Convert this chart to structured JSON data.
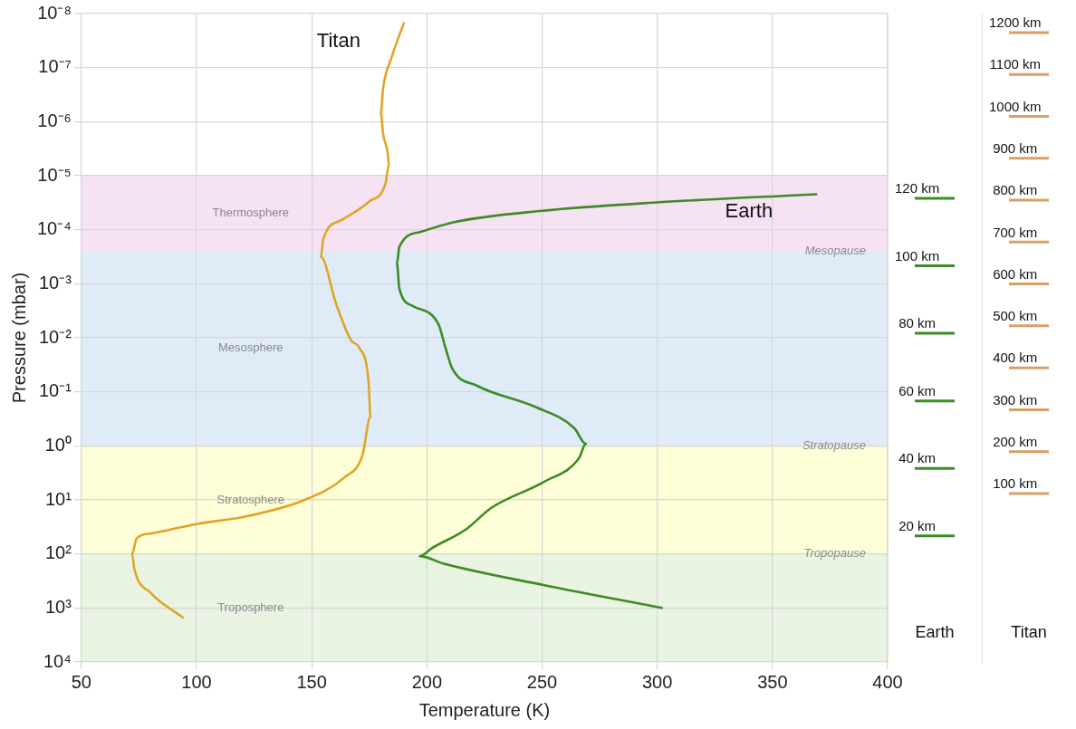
{
  "chart_data": {
    "type": "line",
    "xlabel": "Temperature (K)",
    "ylabel": "Pressure (mbar)",
    "y2label": "Earth",
    "y3label": "Titan",
    "xlim": [
      50,
      400
    ],
    "xticks": [
      50,
      100,
      150,
      200,
      250,
      300,
      350,
      400
    ],
    "ylim": [
      10000,
      1e-08
    ],
    "yticks": [
      {
        "value": 1e-08,
        "label": "10⁻⁸"
      },
      {
        "value": 1e-07,
        "label": "10⁻⁷"
      },
      {
        "value": 1e-06,
        "label": "10⁻⁶"
      },
      {
        "value": 1e-05,
        "label": "10⁻⁵"
      },
      {
        "value": 0.0001,
        "label": "10⁻⁴"
      },
      {
        "value": 0.001,
        "label": "10⁻³"
      },
      {
        "value": 0.01,
        "label": "10⁻²"
      },
      {
        "value": 0.1,
        "label": "10⁻¹"
      },
      {
        "value": 1,
        "label": "10⁰"
      },
      {
        "value": 10,
        "label": "10¹"
      },
      {
        "value": 100,
        "label": "10²"
      },
      {
        "value": 1000,
        "label": "10³"
      },
      {
        "value": 10000,
        "label": "10⁴"
      }
    ],
    "y2lim": [
      -20,
      172
    ],
    "y2ticks": [
      {
        "value": 120,
        "label": "120 km"
      },
      {
        "value": 100,
        "label": "100 km"
      },
      {
        "value": 80,
        "label": "80 km"
      },
      {
        "value": 60,
        "label": "60 km"
      },
      {
        "value": 40,
        "label": "40 km"
      },
      {
        "value": 20,
        "label": "20 km"
      }
    ],
    "y3lim": [
      -324,
      1224
    ],
    "y3ticks": [
      {
        "value": 1200,
        "label": "1200 km"
      },
      {
        "value": 1100,
        "label": "1100 km"
      },
      {
        "value": 1000,
        "label": "1000 km"
      },
      {
        "value": 900,
        "label": "900 km"
      },
      {
        "value": 800,
        "label": "800 km"
      },
      {
        "value": 700,
        "label": "700 km"
      },
      {
        "value": 600,
        "label": "600 km"
      },
      {
        "value": 500,
        "label": "500 km"
      },
      {
        "value": 400,
        "label": "400 km"
      },
      {
        "value": 300,
        "label": "300 km"
      },
      {
        "value": 200,
        "label": "200 km"
      },
      {
        "value": 100,
        "label": "100 km"
      }
    ],
    "log": "y",
    "grid": true,
    "legend": false,
    "marker": "none",
    "line_style": "solid",
    "series": [
      {
        "name": "Titan",
        "color": "#e0a526",
        "x": [
          94,
          80,
          73,
          72,
          74,
          80,
          100,
          122,
          147,
          164,
          172,
          175.5,
          174.7,
          170.5,
          167,
          160.5,
          154,
          155,
          163,
          175,
          182,
          183.5,
          183,
          181,
          180,
          181,
          184.6,
          190
        ],
        "values": [
          1500,
          520,
          190,
          100,
          52,
          42,
          28,
          20,
          10,
          3.9,
          1.5,
          0.29,
          0.066,
          0.015,
          0.011,
          0.0023,
          0.00032,
          0.00015,
          6.6e-05,
          3e-05,
          1.4e-05,
          6.3e-06,
          3.8e-06,
          1.7e-06,
          6.9e-07,
          2.4e-07,
          6.6e-08,
          1.5e-08
        ]
      },
      {
        "name": "Earth",
        "color": "#3d8b25",
        "x": [
          302,
          251,
          207,
          197,
          202,
          217,
          228,
          251,
          266,
          269,
          264,
          247,
          222,
          211,
          208,
          205,
          194,
          188,
          187,
          188,
          197,
          212,
          249,
          301,
          369
        ],
        "values": [
          1000,
          380,
          150,
          110,
          79,
          35,
          14,
          4.6,
          1.7,
          0.92,
          0.47,
          0.19,
          0.078,
          0.037,
          0.015,
          0.0056,
          0.0026,
          0.0012,
          0.00042,
          0.00021,
          0.00011,
          7.2e-05,
          4.5e-05,
          3.1e-05,
          2.2e-05
        ]
      }
    ],
    "bands": [
      {
        "axis": "y",
        "from": 1e-05,
        "to": 0.00025,
        "label": "Thermosphere",
        "color": "#f5e2f3"
      },
      {
        "axis": "y",
        "from": 0.00025,
        "to": 1,
        "label": "Mesosphere",
        "color": "#dfecf8"
      },
      {
        "axis": "y",
        "from": 1,
        "to": 100,
        "label": "Stratosphere",
        "color": "#fdfdd8"
      },
      {
        "axis": "y",
        "from": 100,
        "to": 10000,
        "label": "Troposphere",
        "color": "#e9f5e2"
      }
    ],
    "annotations": [
      {
        "text": "Mesopause",
        "y": 0.00025
      },
      {
        "text": "Stratopause",
        "y": 1
      },
      {
        "text": "Tropopause",
        "y": 100
      }
    ]
  }
}
